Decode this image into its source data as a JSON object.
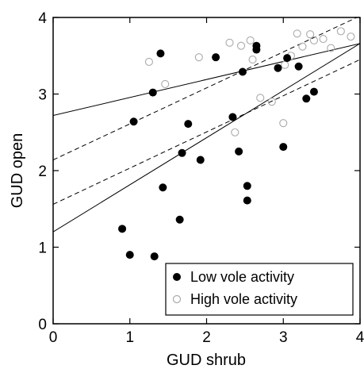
{
  "chart_data": {
    "type": "scatter",
    "xlabel": "GUD shrub",
    "ylabel": "GUD open",
    "xlim": [
      0,
      4
    ],
    "ylim": [
      0,
      4
    ],
    "xticks": [
      "0",
      "1",
      "2",
      "3",
      "4"
    ],
    "yticks": [
      "0",
      "1",
      "2",
      "3",
      "4"
    ],
    "grid": false,
    "legend_position": "bottom-right",
    "series": [
      {
        "name": "Low vole activity",
        "marker": "filled-circle",
        "color": "#000000",
        "points": [
          [
            0.9,
            1.24
          ],
          [
            1.0,
            0.9
          ],
          [
            1.05,
            2.64
          ],
          [
            1.3,
            3.02
          ],
          [
            1.32,
            0.88
          ],
          [
            1.4,
            3.53
          ],
          [
            1.43,
            1.78
          ],
          [
            1.65,
            1.36
          ],
          [
            1.68,
            2.23
          ],
          [
            1.76,
            2.61
          ],
          [
            1.92,
            2.14
          ],
          [
            2.12,
            3.48
          ],
          [
            2.34,
            2.7
          ],
          [
            2.42,
            2.25
          ],
          [
            2.47,
            3.29
          ],
          [
            2.53,
            1.8
          ],
          [
            2.53,
            1.61
          ],
          [
            2.65,
            3.63
          ],
          [
            2.65,
            3.58
          ],
          [
            2.93,
            3.34
          ],
          [
            3.0,
            2.31
          ],
          [
            3.05,
            3.47
          ],
          [
            3.2,
            3.36
          ],
          [
            3.3,
            2.94
          ],
          [
            3.4,
            3.03
          ]
        ]
      },
      {
        "name": "High vole activity",
        "marker": "open-circle",
        "color": "#aaaaaa",
        "points": [
          [
            1.25,
            3.42
          ],
          [
            1.46,
            3.13
          ],
          [
            1.9,
            3.48
          ],
          [
            2.3,
            3.67
          ],
          [
            2.37,
            2.5
          ],
          [
            2.45,
            3.63
          ],
          [
            2.57,
            3.7
          ],
          [
            2.6,
            3.45
          ],
          [
            2.7,
            2.95
          ],
          [
            2.85,
            2.9
          ],
          [
            3.0,
            2.62
          ],
          [
            3.02,
            3.38
          ],
          [
            3.1,
            3.5
          ],
          [
            3.18,
            3.79
          ],
          [
            3.25,
            3.62
          ],
          [
            3.35,
            3.78
          ],
          [
            3.4,
            3.7
          ],
          [
            3.52,
            3.72
          ],
          [
            3.62,
            3.6
          ],
          [
            3.75,
            3.82
          ],
          [
            3.88,
            3.75
          ]
        ]
      }
    ],
    "fit_lines": [
      {
        "style": "solid",
        "x": [
          0,
          4
        ],
        "y": [
          2.72,
          3.66
        ]
      },
      {
        "style": "solid",
        "x": [
          0,
          4
        ],
        "y": [
          1.2,
          3.66
        ]
      },
      {
        "style": "dashed",
        "x": [
          0,
          4
        ],
        "y": [
          2.14,
          4.02
        ]
      },
      {
        "style": "dashed",
        "x": [
          0,
          4
        ],
        "y": [
          1.56,
          3.45
        ]
      }
    ]
  }
}
